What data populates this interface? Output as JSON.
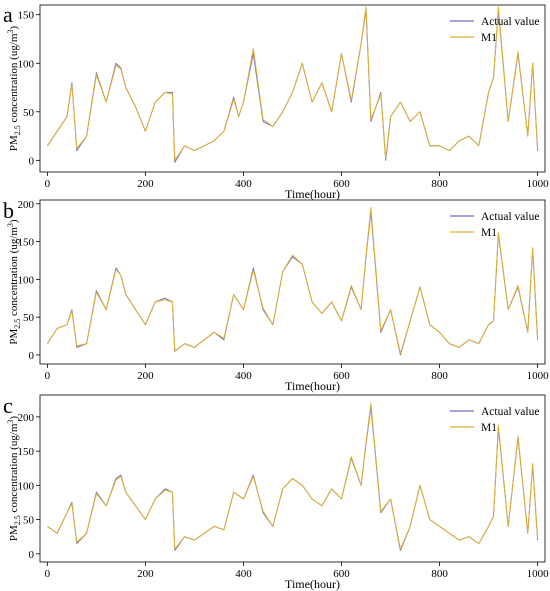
{
  "chart_data": [
    {
      "panel_label": "a",
      "type": "line",
      "xlabel": "Time(hour)",
      "ylabel_parts": [
        "PM",
        "2.5",
        " concentration (ug/m",
        "3",
        ")"
      ],
      "xlim": [
        -15,
        1015
      ],
      "ylim": [
        -12,
        160
      ],
      "xticks": [
        0,
        200,
        400,
        600,
        800,
        1000
      ],
      "yticks": [
        0,
        50,
        100,
        150
      ],
      "grid": false,
      "legend": "top-right",
      "series": [
        {
          "name": "Actual value",
          "color": "#6f6fc8"
        },
        {
          "name": "M1",
          "color": "#e0b030"
        }
      ],
      "x": [
        0,
        20,
        40,
        50,
        60,
        80,
        100,
        120,
        140,
        150,
        160,
        180,
        200,
        220,
        240,
        255,
        260,
        280,
        300,
        320,
        340,
        360,
        380,
        390,
        400,
        420,
        440,
        460,
        480,
        500,
        520,
        540,
        560,
        580,
        600,
        620,
        640,
        650,
        660,
        680,
        690,
        700,
        720,
        740,
        760,
        780,
        800,
        820,
        840,
        860,
        880,
        900,
        910,
        920,
        940,
        960,
        980,
        990,
        1000
      ],
      "actual": [
        15,
        30,
        45,
        80,
        10,
        25,
        90,
        60,
        100,
        95,
        75,
        55,
        30,
        60,
        70,
        70,
        -2,
        15,
        10,
        15,
        20,
        30,
        65,
        45,
        60,
        110,
        40,
        35,
        50,
        70,
        100,
        60,
        80,
        50,
        110,
        60,
        120,
        155,
        40,
        70,
        0,
        45,
        60,
        40,
        50,
        15,
        15,
        10,
        20,
        25,
        15,
        70,
        85,
        155,
        40,
        110,
        25,
        100,
        10
      ],
      "m1": [
        15,
        30,
        45,
        78,
        12,
        25,
        88,
        60,
        98,
        94,
        75,
        55,
        30,
        60,
        70,
        68,
        0,
        15,
        10,
        15,
        20,
        30,
        63,
        45,
        60,
        115,
        42,
        35,
        50,
        70,
        100,
        60,
        80,
        50,
        110,
        62,
        120,
        158,
        42,
        68,
        2,
        45,
        60,
        40,
        50,
        15,
        15,
        10,
        20,
        25,
        15,
        70,
        85,
        158,
        40,
        112,
        25,
        100,
        12
      ]
    },
    {
      "panel_label": "b",
      "type": "line",
      "xlabel": "Time(hour)",
      "ylabel_parts": [
        "PM",
        "2.5",
        " concentration (ug/m",
        "3",
        ")"
      ],
      "xlim": [
        -15,
        1015
      ],
      "ylim": [
        -12,
        205
      ],
      "xticks": [
        0,
        200,
        400,
        600,
        800,
        1000
      ],
      "yticks": [
        0,
        50,
        100,
        150,
        200
      ],
      "grid": false,
      "legend": "top-right",
      "series": [
        {
          "name": "Actual value",
          "color": "#6f6fc8"
        },
        {
          "name": "M1",
          "color": "#e0b030"
        }
      ],
      "x": [
        0,
        20,
        40,
        50,
        60,
        80,
        100,
        120,
        140,
        150,
        160,
        180,
        200,
        220,
        240,
        255,
        260,
        280,
        300,
        320,
        340,
        360,
        380,
        400,
        420,
        440,
        460,
        480,
        500,
        520,
        540,
        560,
        580,
        600,
        620,
        640,
        650,
        660,
        680,
        700,
        720,
        740,
        760,
        780,
        800,
        820,
        840,
        860,
        880,
        900,
        910,
        920,
        940,
        960,
        980,
        990,
        1000
      ],
      "actual": [
        15,
        35,
        40,
        60,
        10,
        15,
        85,
        60,
        115,
        105,
        80,
        60,
        40,
        70,
        75,
        70,
        5,
        15,
        10,
        20,
        30,
        20,
        80,
        60,
        115,
        60,
        40,
        110,
        130,
        120,
        70,
        55,
        70,
        45,
        90,
        60,
        130,
        190,
        30,
        60,
        0,
        45,
        90,
        40,
        30,
        15,
        10,
        20,
        15,
        40,
        45,
        160,
        60,
        90,
        30,
        140,
        20
      ],
      "m1": [
        15,
        35,
        40,
        58,
        12,
        15,
        83,
        60,
        113,
        105,
        80,
        60,
        40,
        70,
        73,
        70,
        5,
        15,
        10,
        20,
        30,
        22,
        80,
        60,
        112,
        62,
        40,
        110,
        132,
        120,
        70,
        55,
        70,
        45,
        92,
        60,
        132,
        195,
        32,
        60,
        2,
        45,
        90,
        40,
        30,
        15,
        10,
        20,
        15,
        40,
        45,
        162,
        60,
        92,
        30,
        142,
        22
      ]
    },
    {
      "panel_label": "c",
      "type": "line",
      "xlabel": "Time(hour)",
      "ylabel_parts": [
        "PM",
        "2.5",
        " concentration (ug/m",
        "3",
        ")"
      ],
      "xlim": [
        -15,
        1015
      ],
      "ylim": [
        -12,
        232
      ],
      "xticks": [
        0,
        200,
        400,
        600,
        800,
        1000
      ],
      "yticks": [
        0,
        50,
        100,
        150,
        200
      ],
      "grid": false,
      "legend": "top-right",
      "series": [
        {
          "name": "Actual value",
          "color": "#6f6fc8"
        },
        {
          "name": "M1",
          "color": "#e0b030"
        }
      ],
      "x": [
        0,
        20,
        40,
        50,
        60,
        80,
        100,
        120,
        140,
        150,
        160,
        180,
        200,
        220,
        240,
        255,
        260,
        280,
        300,
        320,
        340,
        360,
        380,
        400,
        420,
        440,
        460,
        480,
        500,
        520,
        540,
        560,
        580,
        600,
        620,
        640,
        650,
        660,
        680,
        700,
        720,
        740,
        760,
        780,
        800,
        820,
        840,
        860,
        880,
        900,
        910,
        920,
        940,
        960,
        980,
        990,
        1000
      ],
      "actual": [
        40,
        30,
        60,
        75,
        15,
        30,
        90,
        70,
        110,
        115,
        90,
        70,
        50,
        80,
        95,
        90,
        5,
        25,
        20,
        30,
        40,
        35,
        90,
        80,
        115,
        60,
        40,
        95,
        110,
        100,
        80,
        70,
        95,
        80,
        140,
        100,
        160,
        215,
        60,
        80,
        5,
        40,
        100,
        50,
        40,
        30,
        20,
        25,
        15,
        40,
        55,
        185,
        40,
        170,
        30,
        130,
        20
      ],
      "m1": [
        40,
        30,
        60,
        73,
        17,
        30,
        88,
        70,
        108,
        113,
        90,
        70,
        50,
        80,
        93,
        90,
        7,
        25,
        20,
        30,
        40,
        35,
        90,
        80,
        113,
        62,
        40,
        95,
        110,
        100,
        80,
        70,
        95,
        80,
        142,
        100,
        162,
        220,
        62,
        80,
        7,
        40,
        100,
        50,
        40,
        30,
        20,
        25,
        15,
        40,
        55,
        188,
        40,
        172,
        30,
        132,
        22
      ]
    }
  ]
}
